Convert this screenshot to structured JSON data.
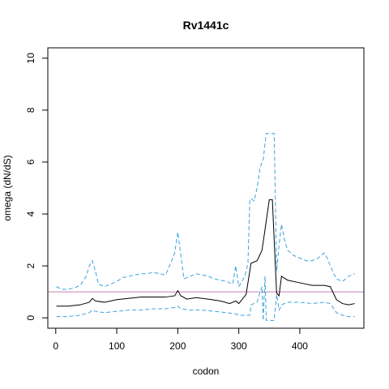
{
  "chart_data": {
    "type": "line",
    "title": "Rv1441c",
    "xlabel": "codon",
    "ylabel": "omega (dN/dS)",
    "xlim": [
      -13,
      505
    ],
    "ylim": [
      -0.4,
      10.4
    ],
    "xticks": [
      0,
      100,
      200,
      300,
      400
    ],
    "yticks": [
      0,
      2,
      4,
      6,
      8,
      10
    ],
    "x_tick_labels": [
      "0",
      "100",
      "200",
      "300",
      "400"
    ],
    "y_tick_labels": [
      "0",
      "2",
      "4",
      "6",
      "8",
      "10"
    ],
    "grid": false,
    "reference_line": {
      "y": 1,
      "color": "#c47fb2"
    },
    "colors": {
      "omega": "#000000",
      "bounds": "#3aa3dc",
      "reference": "#c47fb2"
    },
    "series": [
      {
        "style": "solid",
        "x": [
          1,
          20,
          40,
          55,
          60,
          65,
          80,
          100,
          120,
          140,
          160,
          180,
          195,
          200,
          205,
          215,
          230,
          250,
          270,
          285,
          295,
          300,
          305,
          312,
          316,
          320,
          330,
          338,
          343,
          350,
          355,
          358,
          362,
          366,
          370,
          380,
          400,
          420,
          440,
          450,
          460,
          470,
          480,
          490
        ],
        "y": [
          0.45,
          0.45,
          0.5,
          0.6,
          0.75,
          0.65,
          0.6,
          0.7,
          0.75,
          0.8,
          0.8,
          0.8,
          0.85,
          1.05,
          0.85,
          0.72,
          0.78,
          0.72,
          0.65,
          0.55,
          0.65,
          0.55,
          0.7,
          0.9,
          1.5,
          2.1,
          2.2,
          2.6,
          3.4,
          4.55,
          4.55,
          3.0,
          0.95,
          0.85,
          1.6,
          1.45,
          1.35,
          1.25,
          1.25,
          1.2,
          0.7,
          0.55,
          0.5,
          0.55
        ]
      },
      {
        "style": "dashed",
        "x": [
          1,
          10,
          20,
          30,
          40,
          50,
          55,
          60,
          65,
          70,
          80,
          90,
          100,
          110,
          120,
          130,
          140,
          150,
          160,
          170,
          180,
          190,
          195,
          200,
          205,
          210,
          220,
          230,
          240,
          250,
          260,
          270,
          280,
          290,
          295,
          300,
          305,
          310,
          315,
          318,
          320,
          325,
          330,
          335,
          340,
          345,
          350,
          355,
          358,
          362,
          366,
          370,
          375,
          380,
          390,
          400,
          410,
          420,
          430,
          440,
          445,
          450,
          460,
          470,
          480,
          490
        ],
        "y": [
          1.2,
          1.1,
          1.1,
          1.15,
          1.25,
          1.6,
          2.0,
          2.2,
          1.8,
          1.3,
          1.2,
          1.3,
          1.4,
          1.55,
          1.6,
          1.65,
          1.7,
          1.7,
          1.75,
          1.7,
          1.65,
          2.2,
          2.5,
          3.3,
          2.4,
          1.5,
          1.6,
          1.7,
          1.65,
          1.6,
          1.5,
          1.45,
          1.4,
          1.3,
          2.0,
          1.2,
          1.4,
          1.6,
          2.1,
          4.5,
          4.6,
          4.5,
          5.0,
          5.8,
          6.1,
          7.1,
          7.1,
          7.1,
          7.1,
          1.8,
          2.8,
          3.6,
          3.0,
          2.6,
          2.4,
          2.3,
          2.2,
          2.2,
          2.3,
          2.5,
          2.3,
          2.0,
          1.5,
          1.4,
          1.6,
          1.7
        ]
      },
      {
        "style": "dashed",
        "x": [
          1,
          20,
          40,
          55,
          60,
          65,
          80,
          100,
          120,
          140,
          160,
          180,
          195,
          200,
          205,
          220,
          240,
          260,
          280,
          295,
          300,
          310,
          315,
          318,
          320,
          330,
          335,
          338,
          340,
          343,
          345,
          350,
          355,
          358,
          362,
          366,
          370,
          380,
          400,
          420,
          440,
          450,
          460,
          470,
          480,
          490
        ],
        "y": [
          0.05,
          0.05,
          0.1,
          0.2,
          0.3,
          0.25,
          0.2,
          0.25,
          0.3,
          0.3,
          0.35,
          0.35,
          0.4,
          0.45,
          0.35,
          0.3,
          0.3,
          0.25,
          0.2,
          0.15,
          0.1,
          0.1,
          0.1,
          0.1,
          0.5,
          0.6,
          1.0,
          1.2,
          -0.1,
          1.6,
          -0.1,
          -0.1,
          -0.1,
          -0.1,
          0.9,
          0.3,
          0.5,
          0.6,
          0.6,
          0.55,
          0.6,
          0.55,
          0.2,
          0.1,
          0.05,
          0.05
        ]
      }
    ]
  }
}
